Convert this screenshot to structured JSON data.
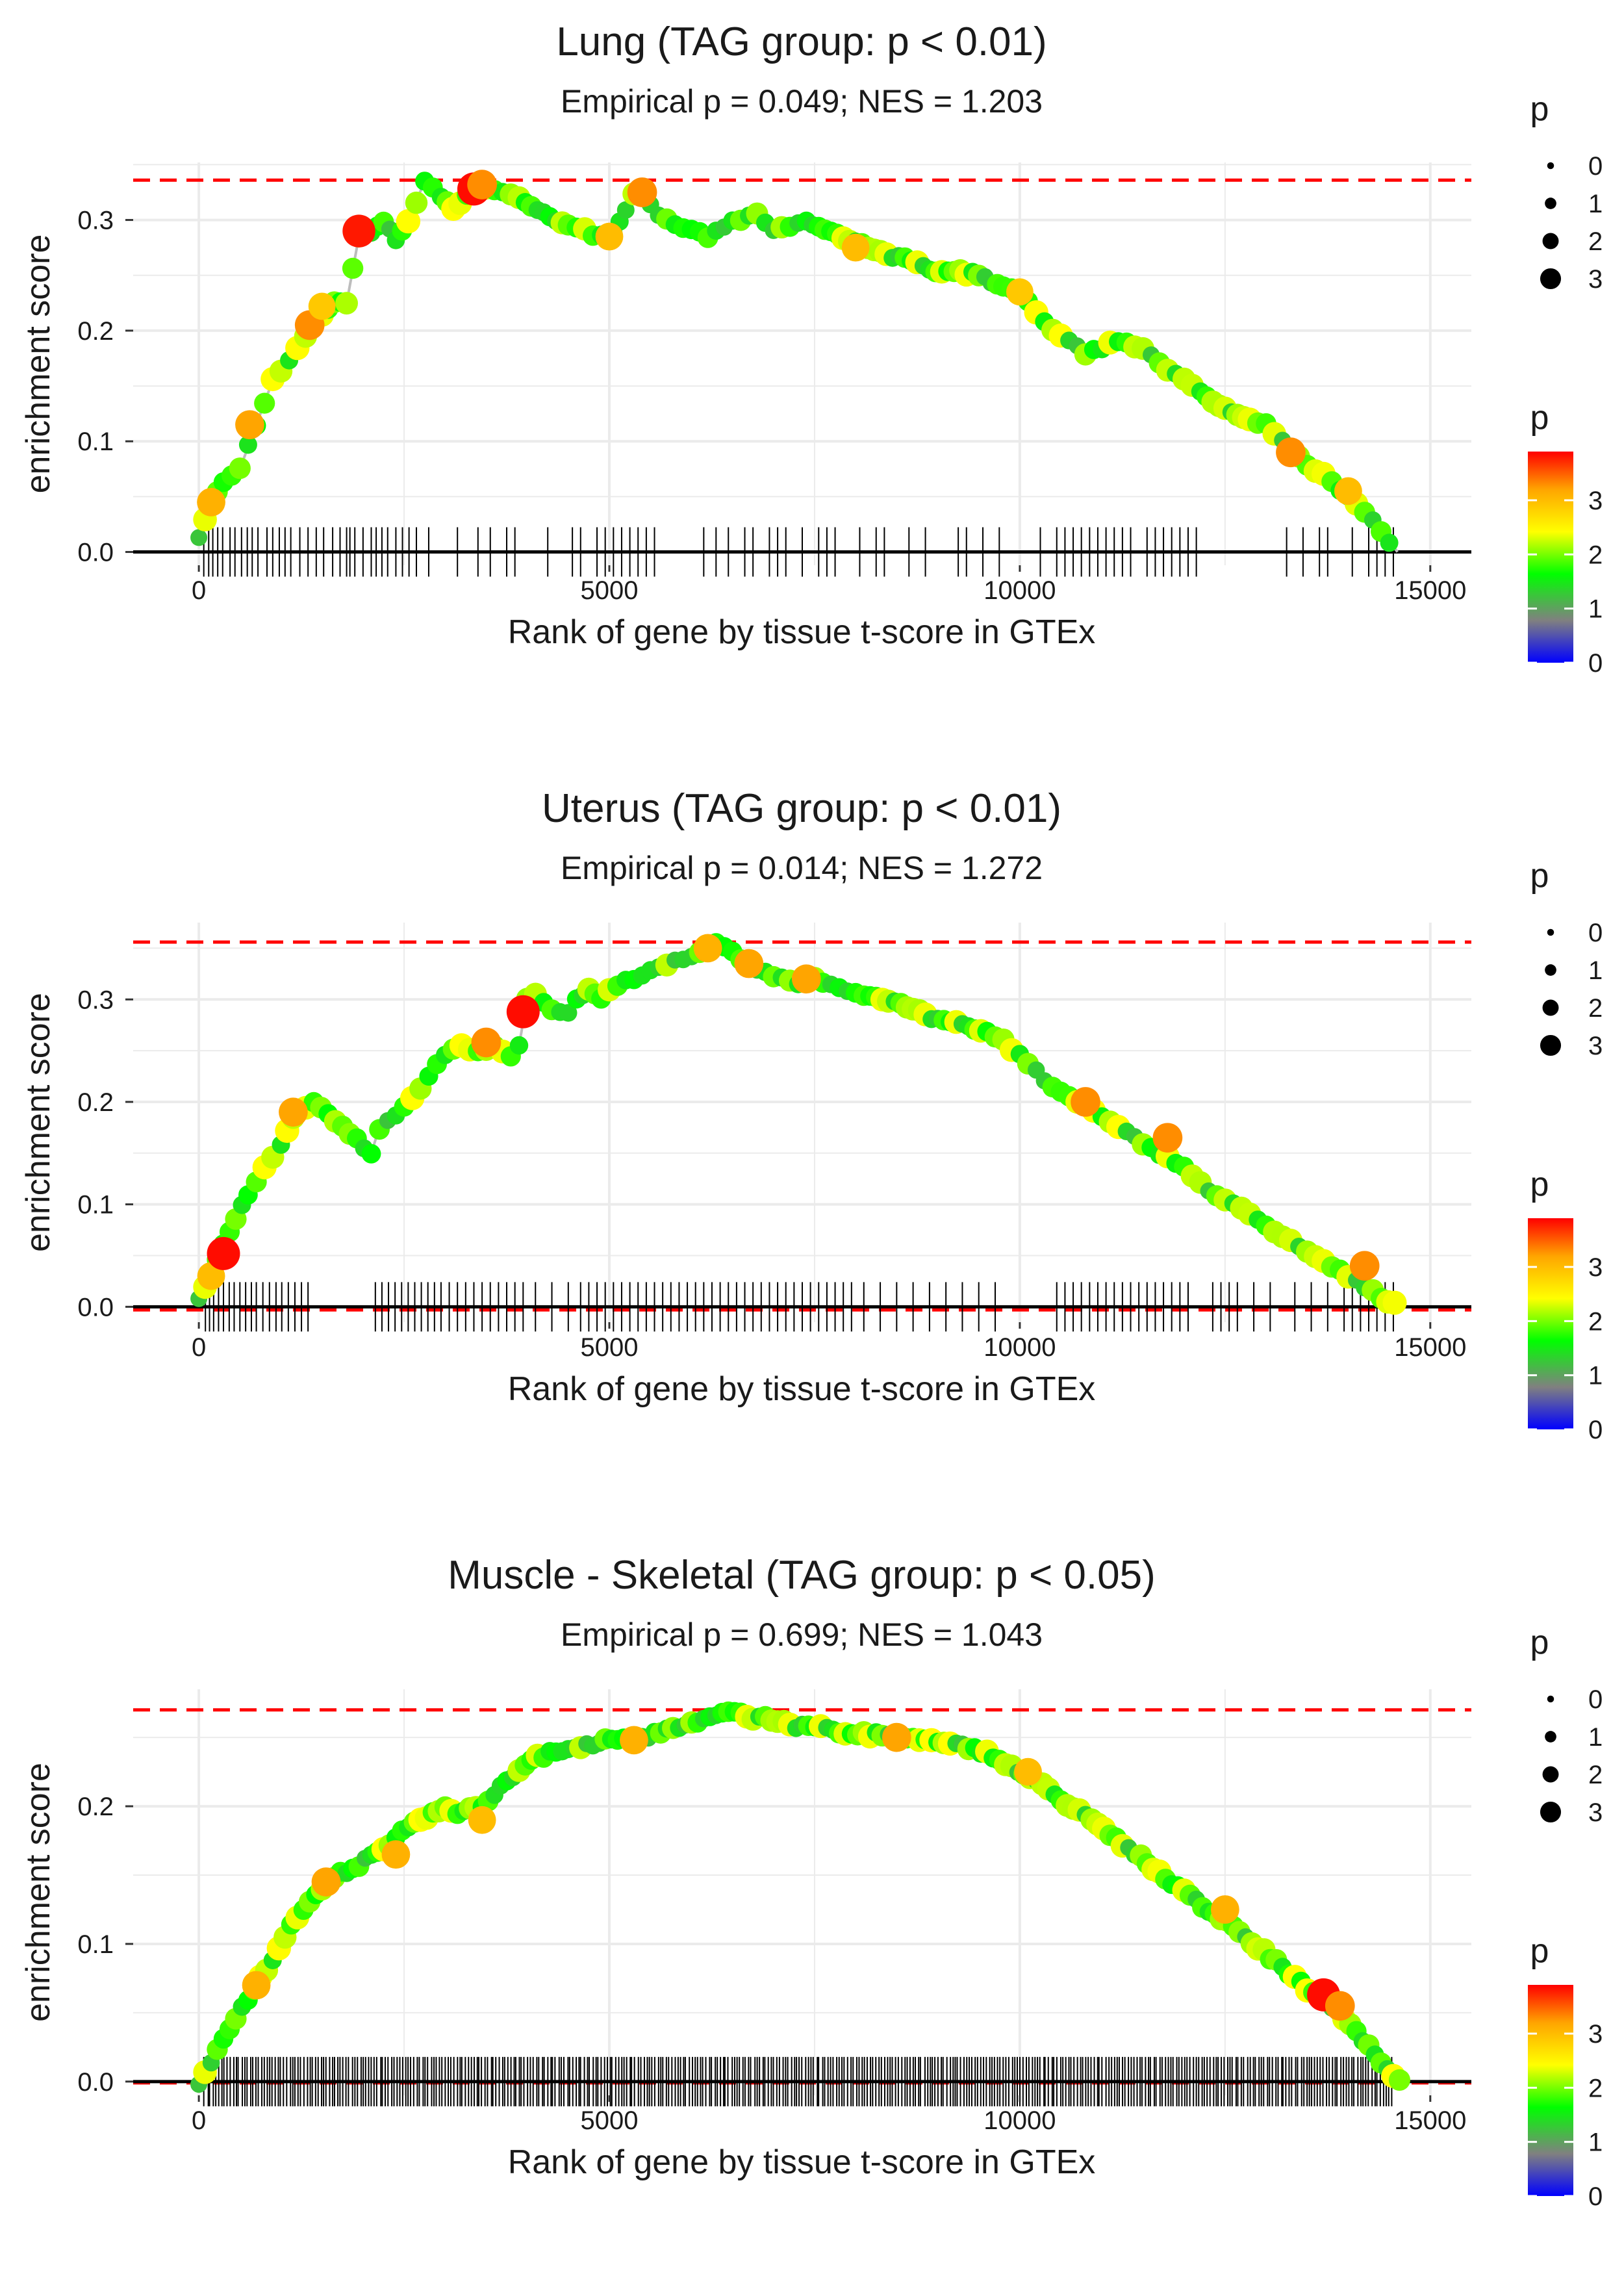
{
  "colors": {
    "gradient": [
      "#0000ff",
      "#808080",
      "#00ff00",
      "#ffff00",
      "#ffa500",
      "#ff0000"
    ],
    "path_line": "#bdbdbd",
    "ref_line": "#ff0000",
    "grid": "#ebebeb"
  },
  "chart_data": [
    {
      "type": "line",
      "title": "Lung (TAG group: p < 0.01)",
      "subtitle": "Empirical p = 0.049; NES = 1.203",
      "xlabel": "Rank of gene by tissue t-score in GTEx",
      "ylabel": "enrichment score",
      "xlim": [
        -800,
        15500
      ],
      "ylim": [
        -0.012,
        0.352
      ],
      "xticks": [
        0,
        5000,
        10000,
        15000
      ],
      "xtick_labels": [
        "0",
        "5000",
        "10000",
        "15000"
      ],
      "yticks": [
        0.0,
        0.1,
        0.2,
        0.3
      ],
      "ytick_labels": [
        "0.0",
        "0.1",
        "0.2",
        "0.3"
      ],
      "max_es": 0.336,
      "min_es": 0.0,
      "legend_size": {
        "title": "p",
        "labels": [
          "0",
          "1",
          "2",
          "3"
        ],
        "values": [
          0,
          1,
          2,
          3
        ]
      },
      "legend_color": {
        "title": "p",
        "labels": [
          "3",
          "2",
          "1",
          "0"
        ],
        "values": [
          3,
          2,
          1,
          0
        ],
        "range": [
          0,
          3.9
        ]
      },
      "curve_x": [
        0,
        150,
        300,
        500,
        700,
        900,
        1100,
        1300,
        1500,
        1650,
        1800,
        1950,
        2100,
        2250,
        2400,
        2550,
        2750,
        2950,
        3100,
        3350,
        3500,
        3700,
        3900,
        4200,
        4500,
        4700,
        4900,
        5050,
        5200,
        5300,
        5400,
        5600,
        5800,
        6000,
        6200,
        6400,
        6600,
        6800,
        7000,
        7200,
        7400,
        7700,
        8000,
        8300,
        8600,
        8900,
        9200,
        9500,
        9800,
        10000,
        10200,
        10400,
        10600,
        10800,
        11000,
        11200,
        11400,
        11600,
        11800,
        12000,
        12200,
        12500,
        12800,
        13000,
        13200,
        13400,
        13600,
        13800,
        14000,
        14200,
        14400,
        14600
      ],
      "curve_y": [
        0.015,
        0.045,
        0.062,
        0.075,
        0.115,
        0.155,
        0.175,
        0.195,
        0.215,
        0.225,
        0.225,
        0.285,
        0.29,
        0.3,
        0.28,
        0.3,
        0.335,
        0.32,
        0.31,
        0.33,
        0.33,
        0.325,
        0.32,
        0.305,
        0.295,
        0.29,
        0.285,
        0.29,
        0.31,
        0.325,
        0.325,
        0.305,
        0.295,
        0.29,
        0.285,
        0.295,
        0.3,
        0.305,
        0.29,
        0.295,
        0.3,
        0.29,
        0.28,
        0.27,
        0.265,
        0.255,
        0.255,
        0.25,
        0.24,
        0.235,
        0.215,
        0.2,
        0.19,
        0.18,
        0.185,
        0.19,
        0.185,
        0.18,
        0.165,
        0.155,
        0.145,
        0.13,
        0.12,
        0.115,
        0.1,
        0.085,
        0.075,
        0.065,
        0.05,
        0.035,
        0.02,
        0.0
      ],
      "rug_x": [
        60,
        120,
        170,
        230,
        290,
        380,
        440,
        520,
        590,
        650,
        720,
        830,
        900,
        980,
        1050,
        1120,
        1230,
        1330,
        1430,
        1520,
        1630,
        1720,
        1800,
        1840,
        1900,
        2000,
        2100,
        2160,
        2230,
        2300,
        2400,
        2480,
        2560,
        2650,
        2800,
        3150,
        3400,
        3550,
        3750,
        3850,
        4250,
        4550,
        4650,
        4850,
        4950,
        5050,
        5150,
        5250,
        5350,
        5450,
        5550,
        6150,
        6300,
        6450,
        6650,
        6750,
        6950,
        7050,
        7150,
        7350,
        7550,
        7650,
        7750,
        8050,
        8250,
        8350,
        8650,
        8850,
        9250,
        9350,
        9550,
        9750,
        10250,
        10450,
        10550,
        10650,
        10750,
        10850,
        10950,
        11050,
        11150,
        11250,
        11350,
        11550,
        11650,
        11750,
        11850,
        11950,
        12050,
        12150,
        13250,
        13450,
        13650,
        13750,
        14050,
        14250,
        14350,
        14450,
        14550
      ],
      "highlights": [
        {
          "x": 150,
          "y": 0.045,
          "p": 3.1
        },
        {
          "x": 620,
          "y": 0.115,
          "p": 3.2
        },
        {
          "x": 1350,
          "y": 0.205,
          "p": 3.3
        },
        {
          "x": 1500,
          "y": 0.222,
          "p": 2.9
        },
        {
          "x": 1950,
          "y": 0.29,
          "p": 3.8
        },
        {
          "x": 3350,
          "y": 0.328,
          "p": 3.85
        },
        {
          "x": 3450,
          "y": 0.332,
          "p": 3.3
        },
        {
          "x": 5400,
          "y": 0.325,
          "p": 3.3
        },
        {
          "x": 5000,
          "y": 0.285,
          "p": 3.0
        },
        {
          "x": 8000,
          "y": 0.275,
          "p": 3.0
        },
        {
          "x": 10000,
          "y": 0.235,
          "p": 2.9
        },
        {
          "x": 13300,
          "y": 0.09,
          "p": 3.3
        },
        {
          "x": 14000,
          "y": 0.055,
          "p": 3.0
        }
      ]
    },
    {
      "type": "line",
      "title": "Uterus (TAG group: p < 0.01)",
      "subtitle": "Empirical p = 0.014; NES = 1.272",
      "xlabel": "Rank of gene by tissue t-score in GTEx",
      "ylabel": "enrichment score",
      "xlim": [
        -800,
        15500
      ],
      "ylim": [
        -0.015,
        0.375
      ],
      "xticks": [
        0,
        5000,
        10000,
        15000
      ],
      "xtick_labels": [
        "0",
        "5000",
        "10000",
        "15000"
      ],
      "yticks": [
        0.0,
        0.1,
        0.2,
        0.3
      ],
      "ytick_labels": [
        "0.0",
        "0.1",
        "0.2",
        "0.3"
      ],
      "max_es": 0.356,
      "min_es": -0.003,
      "legend_size": {
        "title": "p",
        "labels": [
          "0",
          "1",
          "2",
          "3"
        ],
        "values": [
          0,
          1,
          2,
          3
        ]
      },
      "legend_color": {
        "title": "p",
        "labels": [
          "3",
          "2",
          "1",
          "0"
        ],
        "values": [
          3,
          2,
          1,
          0
        ],
        "range": [
          0,
          3.9
        ]
      },
      "curve_x": [
        0,
        150,
        300,
        450,
        600,
        800,
        1000,
        1150,
        1300,
        1400,
        2100,
        2200,
        2400,
        2600,
        2800,
        3000,
        3200,
        3400,
        3600,
        3800,
        3900,
        4000,
        4100,
        4300,
        4500,
        4600,
        4750,
        4900,
        5100,
        5300,
        5500,
        5700,
        5900,
        6100,
        6300,
        6500,
        6700,
        6900,
        7100,
        7300,
        7500,
        7700,
        7900,
        8100,
        8400,
        8700,
        9000,
        9300,
        9600,
        9800,
        10000,
        10200,
        10400,
        10600,
        10800,
        11000,
        11200,
        11400,
        11600,
        11800,
        12000,
        12200,
        12400,
        12600,
        12800,
        13000,
        13200,
        13400,
        13600,
        13800,
        14000,
        14200,
        14400,
        14650
      ],
      "curve_y": [
        0.01,
        0.03,
        0.06,
        0.085,
        0.11,
        0.135,
        0.16,
        0.185,
        0.195,
        0.2,
        0.15,
        0.175,
        0.185,
        0.205,
        0.225,
        0.245,
        0.255,
        0.25,
        0.255,
        0.245,
        0.255,
        0.3,
        0.305,
        0.29,
        0.285,
        0.3,
        0.31,
        0.3,
        0.315,
        0.32,
        0.33,
        0.335,
        0.34,
        0.345,
        0.355,
        0.345,
        0.335,
        0.325,
        0.32,
        0.315,
        0.32,
        0.315,
        0.31,
        0.305,
        0.3,
        0.29,
        0.28,
        0.275,
        0.27,
        0.26,
        0.245,
        0.23,
        0.215,
        0.205,
        0.195,
        0.185,
        0.175,
        0.165,
        0.155,
        0.145,
        0.135,
        0.12,
        0.11,
        0.1,
        0.09,
        0.08,
        0.07,
        0.06,
        0.05,
        0.04,
        0.03,
        0.02,
        0.01,
        0.0
      ],
      "rug_x": [
        80,
        130,
        180,
        240,
        300,
        370,
        430,
        500,
        570,
        640,
        700,
        780,
        860,
        940,
        1010,
        1090,
        1170,
        1250,
        1330,
        2150,
        2230,
        2310,
        2390,
        2470,
        2550,
        2630,
        2710,
        2790,
        2870,
        2950,
        3050,
        3150,
        3250,
        3350,
        3450,
        3550,
        3650,
        3750,
        3850,
        3950,
        4100,
        4300,
        4500,
        4650,
        4750,
        4850,
        4950,
        5050,
        5150,
        5250,
        5350,
        5450,
        5550,
        5650,
        5750,
        5850,
        5950,
        6050,
        6150,
        6250,
        6350,
        6450,
        6550,
        6650,
        6750,
        6850,
        6950,
        7050,
        7150,
        7250,
        7350,
        7450,
        7550,
        7650,
        7750,
        7850,
        7950,
        8100,
        8300,
        8500,
        8700,
        8900,
        9100,
        9300,
        9500,
        9700,
        10450,
        10550,
        10650,
        10750,
        10850,
        10950,
        11050,
        11150,
        11250,
        11350,
        11450,
        11550,
        11650,
        11750,
        11850,
        11950,
        12050,
        12350,
        12450,
        12550,
        12650,
        12850,
        13050,
        13350,
        13550,
        13750,
        13950,
        14050,
        14150,
        14250,
        14350,
        14450,
        14550
      ],
      "highlights": [
        {
          "x": 150,
          "y": 0.03,
          "p": 3.0
        },
        {
          "x": 300,
          "y": 0.052,
          "p": 3.85
        },
        {
          "x": 1150,
          "y": 0.19,
          "p": 3.2
        },
        {
          "x": 3500,
          "y": 0.258,
          "p": 3.3
        },
        {
          "x": 3950,
          "y": 0.288,
          "p": 3.85
        },
        {
          "x": 6200,
          "y": 0.35,
          "p": 3.1
        },
        {
          "x": 6700,
          "y": 0.335,
          "p": 3.2
        },
        {
          "x": 7400,
          "y": 0.32,
          "p": 3.2
        },
        {
          "x": 10800,
          "y": 0.2,
          "p": 3.3
        },
        {
          "x": 11800,
          "y": 0.165,
          "p": 3.3
        },
        {
          "x": 14200,
          "y": 0.04,
          "p": 3.3
        }
      ]
    },
    {
      "type": "line",
      "title": "Muscle - Skeletal (TAG group: p < 0.05)",
      "subtitle": "Empirical p = 0.699; NES = 1.043",
      "xlabel": "Rank of gene by tissue t-score in GTEx",
      "ylabel": "enrichment score",
      "xlim": [
        -800,
        15500
      ],
      "ylim": [
        -0.01,
        0.285
      ],
      "xticks": [
        0,
        5000,
        10000,
        15000
      ],
      "xtick_labels": [
        "0",
        "5000",
        "10000",
        "15000"
      ],
      "yticks": [
        0.0,
        0.1,
        0.2
      ],
      "ytick_labels": [
        "0.0",
        "0.1",
        "0.2"
      ],
      "max_es": 0.27,
      "min_es": -0.001,
      "legend_size": {
        "title": "p",
        "labels": [
          "0",
          "1",
          "2",
          "3"
        ],
        "values": [
          0,
          1,
          2,
          3
        ]
      },
      "legend_color": {
        "title": "p",
        "labels": [
          "3",
          "2",
          "1",
          "0"
        ],
        "values": [
          3,
          2,
          1,
          0
        ],
        "range": [
          0,
          3.9
        ]
      },
      "curve_x": [
        0,
        150,
        300,
        450,
        600,
        750,
        900,
        1050,
        1200,
        1350,
        1500,
        1650,
        1800,
        1950,
        2100,
        2250,
        2400,
        2550,
        2700,
        2850,
        3000,
        3150,
        3300,
        3450,
        3600,
        3750,
        3900,
        4050,
        4200,
        4350,
        4500,
        4650,
        4800,
        4950,
        5100,
        5250,
        5400,
        5550,
        5700,
        5850,
        6000,
        6150,
        6300,
        6450,
        6600,
        6750,
        6900,
        7050,
        7200,
        7350,
        7500,
        7650,
        7800,
        7950,
        8100,
        8250,
        8400,
        8550,
        8700,
        8850,
        9000,
        9150,
        9300,
        9450,
        9600,
        9750,
        9900,
        10050,
        10200,
        10350,
        10500,
        10650,
        10800,
        10950,
        11100,
        11250,
        11400,
        11550,
        11700,
        11850,
        12000,
        12150,
        12300,
        12450,
        12600,
        12750,
        12900,
        13050,
        13200,
        13350,
        13500,
        13650,
        13800,
        13950,
        14100,
        14250,
        14400,
        14550,
        14700
      ],
      "curve_y": [
        0.0,
        0.015,
        0.03,
        0.045,
        0.06,
        0.075,
        0.09,
        0.105,
        0.12,
        0.13,
        0.14,
        0.148,
        0.153,
        0.158,
        0.163,
        0.17,
        0.177,
        0.184,
        0.19,
        0.196,
        0.2,
        0.195,
        0.198,
        0.2,
        0.208,
        0.218,
        0.226,
        0.233,
        0.237,
        0.24,
        0.243,
        0.244,
        0.245,
        0.248,
        0.248,
        0.248,
        0.25,
        0.252,
        0.255,
        0.257,
        0.26,
        0.264,
        0.268,
        0.27,
        0.268,
        0.265,
        0.264,
        0.261,
        0.259,
        0.258,
        0.257,
        0.256,
        0.255,
        0.254,
        0.253,
        0.252,
        0.251,
        0.25,
        0.249,
        0.247,
        0.246,
        0.245,
        0.244,
        0.242,
        0.238,
        0.232,
        0.228,
        0.225,
        0.218,
        0.212,
        0.205,
        0.2,
        0.195,
        0.188,
        0.18,
        0.172,
        0.166,
        0.16,
        0.152,
        0.145,
        0.138,
        0.131,
        0.125,
        0.12,
        0.112,
        0.105,
        0.098,
        0.09,
        0.083,
        0.075,
        0.068,
        0.062,
        0.055,
        0.045,
        0.035,
        0.025,
        0.015,
        0.006,
        0.0
      ],
      "rug_x": [],
      "highlights": [
        {
          "x": 700,
          "y": 0.07,
          "p": 3.1
        },
        {
          "x": 1550,
          "y": 0.145,
          "p": 3.2
        },
        {
          "x": 2400,
          "y": 0.165,
          "p": 3.1
        },
        {
          "x": 3450,
          "y": 0.19,
          "p": 3.0
        },
        {
          "x": 5300,
          "y": 0.248,
          "p": 3.1
        },
        {
          "x": 8500,
          "y": 0.25,
          "p": 3.2
        },
        {
          "x": 10100,
          "y": 0.225,
          "p": 3.0
        },
        {
          "x": 12500,
          "y": 0.125,
          "p": 3.1
        },
        {
          "x": 13700,
          "y": 0.063,
          "p": 3.85
        },
        {
          "x": 13900,
          "y": 0.055,
          "p": 3.3
        }
      ]
    }
  ]
}
